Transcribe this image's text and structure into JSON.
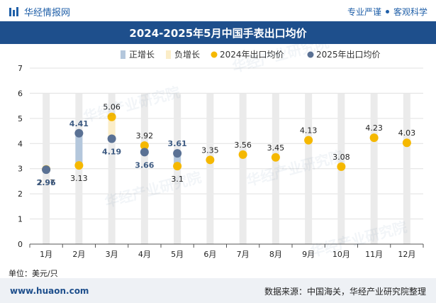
{
  "header": {
    "brand": "华经情报网",
    "slogan_left": "专业严谨",
    "slogan_right": "客观科学"
  },
  "title": "2024-2025年5月中国手表出口均价",
  "unit": "单位：美元/只",
  "footer": {
    "site": "www.huaon.com",
    "source": "数据来源：中国海关，华经产业研究院整理"
  },
  "watermark": "华经产业研究院",
  "colors": {
    "title_bg": "#1e4f8c",
    "inc_bar": "#b4c7dc",
    "dec_bar": "#fbedc8",
    "s2024": "#f5b800",
    "s2025": "#5a7194",
    "grid": "#e0e0e0",
    "bg_bar": "#ebebeb"
  },
  "chart_data": {
    "type": "line",
    "categories": [
      "1月",
      "2月",
      "3月",
      "4月",
      "5月",
      "6月",
      "7月",
      "8月",
      "9月",
      "10月",
      "11月",
      "12月"
    ],
    "ylim": [
      0,
      7
    ],
    "yticks": [
      0,
      1,
      2,
      3,
      4,
      5,
      6,
      7
    ],
    "legend": [
      "正增长",
      "负增长",
      "2024年出口均价",
      "2025年出口均价"
    ],
    "legend_position": "top",
    "series": [
      {
        "name": "2024年出口均价",
        "values": [
          2.97,
          3.13,
          5.06,
          3.92,
          3.1,
          3.35,
          3.56,
          3.45,
          4.13,
          3.08,
          4.23,
          4.03
        ]
      },
      {
        "name": "2025年出口均价",
        "values": [
          2.96,
          4.41,
          4.19,
          3.66,
          3.61,
          null,
          null,
          null,
          null,
          null,
          null,
          null
        ]
      }
    ],
    "labels_2024": [
      "2.97",
      "3.13",
      "5.06",
      "3.92",
      "3.1",
      "3.35",
      "3.56",
      "3.45",
      "4.13",
      "3.08",
      "4.23",
      "4.03"
    ],
    "labels_2025": [
      "2.96",
      "4.41",
      "4.19",
      "3.66",
      "3.61"
    ]
  }
}
